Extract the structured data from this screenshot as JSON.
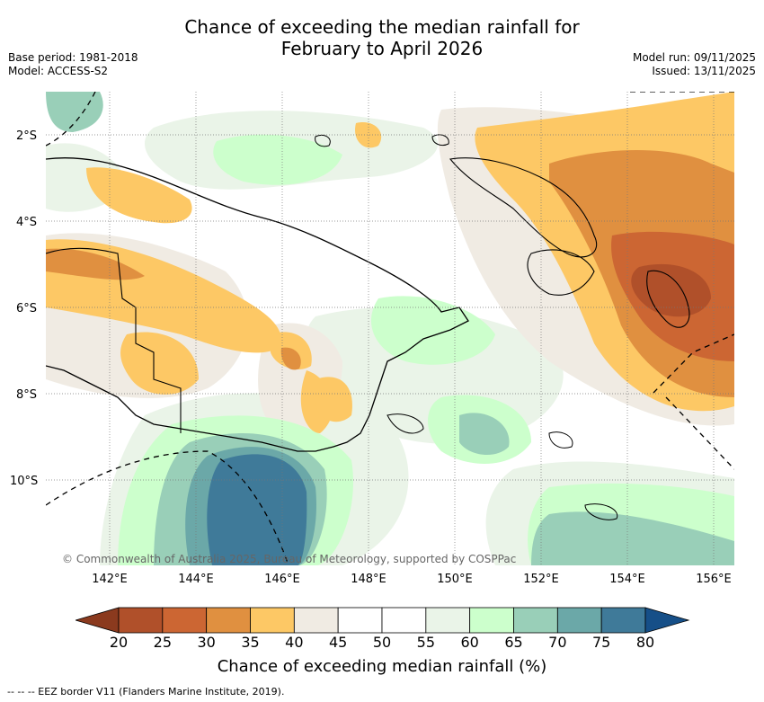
{
  "title_line1": "Chance of exceeding the median rainfall for",
  "title_line2": "February to April 2026",
  "base_period": "Base period: 1981-2018",
  "model": "Model: ACCESS-S2",
  "model_run": "Model run: 09/11/2025",
  "issued": "Issued: 13/11/2025",
  "y_labels": [
    "2°S",
    "4°S",
    "6°S",
    "8°S",
    "10°S"
  ],
  "x_labels": [
    "142°E",
    "144°E",
    "146°E",
    "148°E",
    "150°E",
    "152°E",
    "154°E",
    "156°E"
  ],
  "credit": "© Commonwealth of Australia 2025, Bureau of Meteorology, supported by COSPPac",
  "colorbar": {
    "title": "Chance of exceeding median rainfall (%)",
    "ticks": [
      "20",
      "25",
      "30",
      "35",
      "40",
      "45",
      "50",
      "55",
      "60",
      "65",
      "70",
      "75",
      "80"
    ],
    "colors": [
      "#8b3a1e",
      "#b0502a",
      "#cc6633",
      "#e09040",
      "#fdc865",
      "#f0ebe3",
      "#ffffff",
      "#ffffff",
      "#eaf4e8",
      "#ccffcc",
      "#99cfb8",
      "#6ba8a8",
      "#3f7a99",
      "#164f88"
    ]
  },
  "footer": "--  --  -- EEZ border V11 (Flanders Marine Institute, 2019)."
}
